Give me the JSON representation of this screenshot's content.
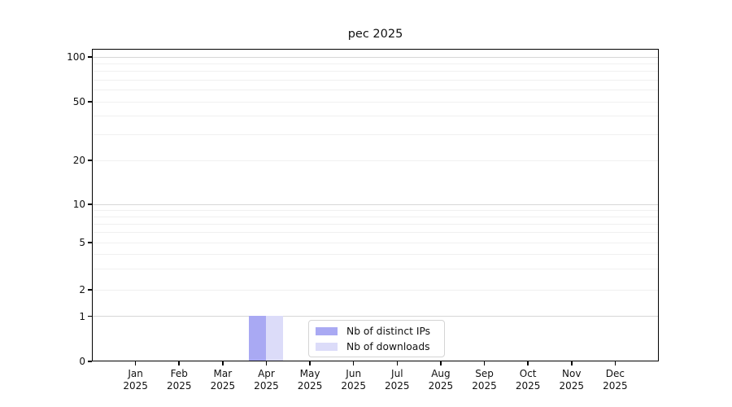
{
  "chart_data": {
    "type": "bar",
    "title": "pec 2025",
    "x_labels": [
      {
        "month": "Jan",
        "year": "2025"
      },
      {
        "month": "Feb",
        "year": "2025"
      },
      {
        "month": "Mar",
        "year": "2025"
      },
      {
        "month": "Apr",
        "year": "2025"
      },
      {
        "month": "May",
        "year": "2025"
      },
      {
        "month": "Jun",
        "year": "2025"
      },
      {
        "month": "Jul",
        "year": "2025"
      },
      {
        "month": "Aug",
        "year": "2025"
      },
      {
        "month": "Sep",
        "year": "2025"
      },
      {
        "month": "Oct",
        "year": "2025"
      },
      {
        "month": "Nov",
        "year": "2025"
      },
      {
        "month": "Dec",
        "year": "2025"
      }
    ],
    "series": [
      {
        "name": "Nb of distinct IPs",
        "color": "#a9a9f3",
        "values": [
          0,
          0,
          0,
          1,
          0,
          0,
          0,
          0,
          0,
          0,
          0,
          0
        ]
      },
      {
        "name": "Nb of downloads",
        "color": "#dcdcf9",
        "values": [
          0,
          0,
          0,
          1,
          0,
          0,
          0,
          0,
          0,
          0,
          0,
          0
        ]
      }
    ],
    "yaxis": {
      "scale": "log-like with 0 baseline",
      "tick_values": [
        0,
        1,
        2,
        5,
        10,
        20,
        50,
        100
      ],
      "major_gridlines": [
        1,
        10,
        100
      ],
      "minor_gridlines": [
        2,
        3,
        4,
        5,
        6,
        7,
        8,
        9,
        20,
        30,
        40,
        50,
        60,
        70,
        80,
        90
      ],
      "range": [
        0,
        112
      ]
    },
    "legend": {
      "entries": [
        "Nb of distinct IPs",
        "Nb of downloads"
      ],
      "position": "bottom-center"
    },
    "grid": true
  }
}
